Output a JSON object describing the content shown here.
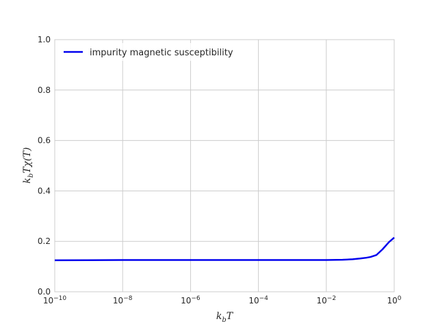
{
  "chart_data": {
    "type": "line",
    "xscale": "log",
    "xlim": [
      1e-10,
      1
    ],
    "ylim": [
      0.0,
      1.0
    ],
    "grid": true,
    "legend_position": "top-left",
    "xlabel_base": "k",
    "xlabel_sub": "b",
    "xlabel_tail": "T",
    "ylabel_base": "k",
    "ylabel_sub": "b",
    "ylabel_tail": "Tχ(T)",
    "xticks": [
      {
        "value": 1e-10,
        "base": "10",
        "exp": "−10"
      },
      {
        "value": 1e-08,
        "base": "10",
        "exp": "−8"
      },
      {
        "value": 1e-06,
        "base": "10",
        "exp": "−6"
      },
      {
        "value": 0.0001,
        "base": "10",
        "exp": "−4"
      },
      {
        "value": 0.01,
        "base": "10",
        "exp": "−2"
      },
      {
        "value": 1,
        "base": "10",
        "exp": "0"
      }
    ],
    "yticks": [
      {
        "value": 0.0,
        "label": "0.0"
      },
      {
        "value": 0.2,
        "label": "0.2"
      },
      {
        "value": 0.4,
        "label": "0.4"
      },
      {
        "value": 0.6,
        "label": "0.6"
      },
      {
        "value": 0.8,
        "label": "0.8"
      },
      {
        "value": 1.0,
        "label": "1.0"
      }
    ],
    "series": [
      {
        "name": "impurity magnetic susceptibility",
        "color": "#0000ee",
        "x": [
          1e-10,
          1e-08,
          1e-06,
          0.0001,
          0.001,
          0.01,
          0.03,
          0.06,
          0.1,
          0.15,
          0.2,
          0.3,
          0.45,
          0.7,
          1.0
        ],
        "y": [
          0.125,
          0.126,
          0.126,
          0.126,
          0.126,
          0.126,
          0.127,
          0.129,
          0.132,
          0.135,
          0.138,
          0.146,
          0.168,
          0.197,
          0.215
        ]
      }
    ]
  }
}
